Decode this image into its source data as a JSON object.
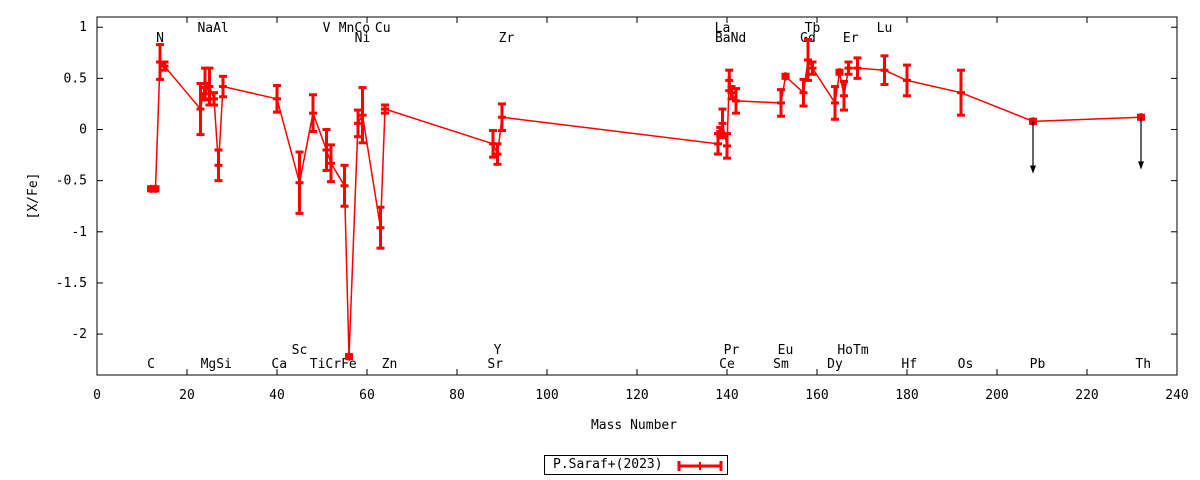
{
  "chart_data": {
    "type": "line",
    "xlabel": "Mass Number",
    "ylabel": "[X/Fe]",
    "xlim": [
      0,
      240
    ],
    "ylim": [
      -2.4,
      1.1
    ],
    "xticks": [
      0,
      20,
      40,
      60,
      80,
      100,
      120,
      140,
      160,
      180,
      200,
      220,
      240
    ],
    "yticks": [
      1,
      0.5,
      0,
      -0.5,
      -1,
      -1.5,
      -2
    ],
    "ytick_labels": [
      "1",
      "0.5",
      "0",
      "-0.5",
      "-1",
      "-1.5",
      "-2"
    ],
    "grid": false,
    "legend": "bottom-center",
    "series": [
      {
        "name": "P.Saraf+(2023)",
        "color": "#ff0000",
        "points": [
          {
            "x": 12,
            "y": -0.58,
            "err": 0.02
          },
          {
            "x": 13,
            "y": -0.58,
            "err": 0.02
          },
          {
            "x": 14,
            "y": 0.66,
            "err": 0.17
          },
          {
            "x": 15,
            "y": 0.62,
            "err": 0.04
          },
          {
            "x": 23,
            "y": 0.2,
            "err": 0.25
          },
          {
            "x": 24,
            "y": 0.45,
            "err": 0.15
          },
          {
            "x": 24,
            "y": 0.35,
            "err": 0.06
          },
          {
            "x": 25,
            "y": 0.42,
            "err": 0.18
          },
          {
            "x": 26,
            "y": 0.3,
            "err": 0.06
          },
          {
            "x": 27,
            "y": -0.35,
            "err": 0.15
          },
          {
            "x": 28,
            "y": 0.42,
            "err": 0.1
          },
          {
            "x": 40,
            "y": 0.3,
            "err": 0.13
          },
          {
            "x": 45,
            "y": -0.52,
            "err": 0.3
          },
          {
            "x": 48,
            "y": 0.16,
            "err": 0.18
          },
          {
            "x": 51,
            "y": -0.2,
            "err": 0.2
          },
          {
            "x": 52,
            "y": -0.33,
            "err": 0.18
          },
          {
            "x": 55,
            "y": -0.55,
            "err": 0.2
          },
          {
            "x": 56,
            "y": -2.22,
            "err": 0.02
          },
          {
            "x": 58,
            "y": 0.06,
            "err": 0.13
          },
          {
            "x": 59,
            "y": 0.14,
            "err": 0.27
          },
          {
            "x": 63,
            "y": -0.96,
            "err": 0.2
          },
          {
            "x": 64,
            "y": 0.2,
            "err": 0.04
          },
          {
            "x": 88,
            "y": -0.14,
            "err": 0.13
          },
          {
            "x": 89,
            "y": -0.24,
            "err": 0.1
          },
          {
            "x": 90,
            "y": 0.12,
            "err": 0.13
          },
          {
            "x": 138,
            "y": -0.14,
            "err": 0.1
          },
          {
            "x": 138.5,
            "y": -0.02,
            "err": 0.04
          },
          {
            "x": 139,
            "y": 0.06,
            "err": 0.14
          },
          {
            "x": 140,
            "y": -0.16,
            "err": 0.12
          },
          {
            "x": 140.5,
            "y": 0.48,
            "err": 0.1
          },
          {
            "x": 141,
            "y": 0.36,
            "err": 0.06
          },
          {
            "x": 142,
            "y": 0.28,
            "err": 0.12
          },
          {
            "x": 152,
            "y": 0.26,
            "err": 0.13
          },
          {
            "x": 153,
            "y": 0.52,
            "err": 0.02
          },
          {
            "x": 157,
            "y": 0.36,
            "err": 0.13
          },
          {
            "x": 158,
            "y": 0.68,
            "err": 0.2
          },
          {
            "x": 159,
            "y": 0.6,
            "err": 0.06
          },
          {
            "x": 164,
            "y": 0.26,
            "err": 0.16
          },
          {
            "x": 165,
            "y": 0.56,
            "err": 0.02
          },
          {
            "x": 166,
            "y": 0.33,
            "err": 0.14
          },
          {
            "x": 167,
            "y": 0.6,
            "err": 0.06
          },
          {
            "x": 169,
            "y": 0.6,
            "err": 0.1
          },
          {
            "x": 175,
            "y": 0.58,
            "err": 0.14
          },
          {
            "x": 180,
            "y": 0.48,
            "err": 0.15
          },
          {
            "x": 192,
            "y": 0.36,
            "err": 0.22
          },
          {
            "x": 208,
            "y": 0.08,
            "err": 0.02,
            "upper_limit": true
          },
          {
            "x": 232,
            "y": 0.12,
            "err": 0.02,
            "upper_limit": true
          }
        ]
      }
    ],
    "element_labels_top": [
      {
        "text": "N",
        "x": 14,
        "row": 2
      },
      {
        "text": "NaAl",
        "x": 25.8,
        "row": 1
      },
      {
        "text": "V",
        "x": 51,
        "row": 1
      },
      {
        "text": "MnCo",
        "x": 57.2,
        "row": 1
      },
      {
        "text": "Ni",
        "x": 59,
        "row": 2
      },
      {
        "text": "Cu",
        "x": 63.5,
        "row": 1
      },
      {
        "text": "Zr",
        "x": 91,
        "row": 2
      },
      {
        "text": "La",
        "x": 139,
        "row": 1
      },
      {
        "text": "BaNd",
        "x": 140.8,
        "row": 2
      },
      {
        "text": "Tb",
        "x": 159,
        "row": 1
      },
      {
        "text": "Gd",
        "x": 158,
        "row": 2
      },
      {
        "text": "Er",
        "x": 167.5,
        "row": 2
      },
      {
        "text": "Lu",
        "x": 175,
        "row": 1
      }
    ],
    "element_labels_bottom": [
      {
        "text": "Sc",
        "x": 45,
        "row": 1
      },
      {
        "text": "Y",
        "x": 89,
        "row": 1
      },
      {
        "text": "Pr",
        "x": 141,
        "row": 1
      },
      {
        "text": "Eu",
        "x": 153,
        "row": 1
      },
      {
        "text": "HoTm",
        "x": 168,
        "row": 1
      },
      {
        "text": "C",
        "x": 12,
        "row": 2
      },
      {
        "text": "MgSi",
        "x": 26.5,
        "row": 2
      },
      {
        "text": "Ca",
        "x": 40.5,
        "row": 2
      },
      {
        "text": "TiCrFe",
        "x": 52.5,
        "row": 2
      },
      {
        "text": "Zn",
        "x": 65,
        "row": 2
      },
      {
        "text": "Sr",
        "x": 88.5,
        "row": 2
      },
      {
        "text": "Ce",
        "x": 140,
        "row": 2
      },
      {
        "text": "Sm",
        "x": 152,
        "row": 2
      },
      {
        "text": "Dy",
        "x": 164,
        "row": 2
      },
      {
        "text": "Hf",
        "x": 180.5,
        "row": 2
      },
      {
        "text": "Os",
        "x": 193,
        "row": 2
      },
      {
        "text": "Pb",
        "x": 209,
        "row": 2
      },
      {
        "text": "Th",
        "x": 232.5,
        "row": 2
      }
    ]
  },
  "legend": {
    "label": "P.Saraf+(2023)"
  }
}
